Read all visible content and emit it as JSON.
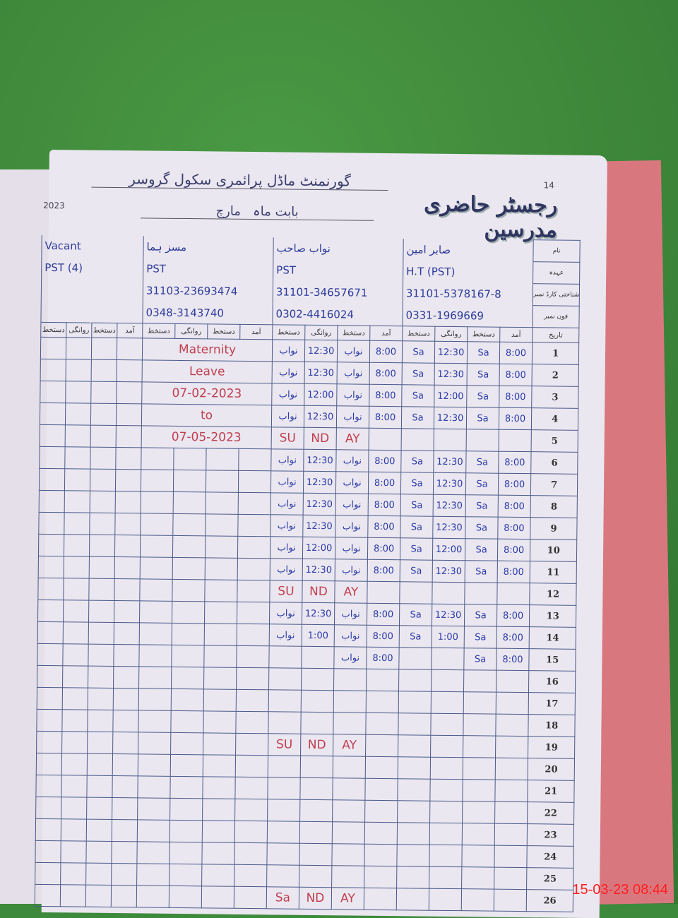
{
  "register": {
    "page_number": "14",
    "title": "رجسٹر حاضری مدرسین",
    "school_name": "گورنمنٹ ماڈل پرائمری سکول گروسر",
    "month_label": "بابت ماہ",
    "month": "مارچ",
    "year_fragment": "2023"
  },
  "row_labels": [
    "نام",
    "عہدہ",
    "شناختی کارڈ نمبر",
    "فون نمبر",
    "تاریخ"
  ],
  "column_headers": {
    "sign": "دستخط",
    "departure": "روانگی",
    "arrival": "آمد"
  },
  "teachers": [
    {
      "name": "Vacant",
      "designation": "PST (4)",
      "cnic": "",
      "phone": ""
    },
    {
      "name": "مسز ہما",
      "designation": "PST",
      "cnic": "31103-23693474",
      "phone": "0348-3143740"
    },
    {
      "name": "نواب صاحب",
      "designation": "PST",
      "cnic": "31101-34657671",
      "phone": "0302-4416024"
    },
    {
      "name": "صابر امین",
      "designation": "H.T (PST)",
      "cnic": "31101-5378167-8",
      "phone": "0331-1969669"
    }
  ],
  "maternity_note": [
    "Maternity",
    "Leave",
    "07-02-2023",
    "to",
    "07-05-2023"
  ],
  "days": [
    {
      "date": "1",
      "nawab": [
        "نواب",
        "12:30",
        "نواب",
        "8:00"
      ],
      "ht": [
        "Sa",
        "12:30",
        "Sa",
        "8:00"
      ]
    },
    {
      "date": "2",
      "nawab": [
        "نواب",
        "12:30",
        "نواب",
        "8:00"
      ],
      "ht": [
        "Sa",
        "12:30",
        "Sa",
        "8:00"
      ]
    },
    {
      "date": "3",
      "nawab": [
        "نواب",
        "12:00",
        "نواب",
        "8:00"
      ],
      "ht": [
        "Sa",
        "12:00",
        "Sa",
        "8:00"
      ]
    },
    {
      "date": "4",
      "nawab": [
        "نواب",
        "12:30",
        "نواب",
        "8:00"
      ],
      "ht": [
        "Sa",
        "12:30",
        "Sa",
        "8:00"
      ]
    },
    {
      "date": "5",
      "holiday": [
        "SU",
        "ND",
        "AY"
      ]
    },
    {
      "date": "6",
      "nawab": [
        "نواب",
        "12:30",
        "نواب",
        "8:00"
      ],
      "ht": [
        "Sa",
        "12:30",
        "Sa",
        "8:00"
      ]
    },
    {
      "date": "7",
      "nawab": [
        "نواب",
        "12:30",
        "نواب",
        "8:00"
      ],
      "ht": [
        "Sa",
        "12:30",
        "Sa",
        "8:00"
      ]
    },
    {
      "date": "8",
      "nawab": [
        "نواب",
        "12:30",
        "نواب",
        "8:00"
      ],
      "ht": [
        "Sa",
        "12:30",
        "Sa",
        "8:00"
      ]
    },
    {
      "date": "9",
      "nawab": [
        "نواب",
        "12:30",
        "نواب",
        "8:00"
      ],
      "ht": [
        "Sa",
        "12:30",
        "Sa",
        "8:00"
      ]
    },
    {
      "date": "10",
      "nawab": [
        "نواب",
        "12:00",
        "نواب",
        "8:00"
      ],
      "ht": [
        "Sa",
        "12:00",
        "Sa",
        "8:00"
      ]
    },
    {
      "date": "11",
      "nawab": [
        "نواب",
        "12:30",
        "نواب",
        "8:00"
      ],
      "ht": [
        "Sa",
        "12:30",
        "Sa",
        "8:00"
      ]
    },
    {
      "date": "12",
      "holiday": [
        "SU",
        "ND",
        "AY"
      ]
    },
    {
      "date": "13",
      "nawab": [
        "نواب",
        "12:30",
        "نواب",
        "8:00"
      ],
      "ht": [
        "Sa",
        "12:30",
        "Sa",
        "8:00"
      ]
    },
    {
      "date": "14",
      "nawab": [
        "نواب",
        "1:00",
        "نواب",
        "8:00"
      ],
      "ht": [
        "Sa",
        "1:00",
        "Sa",
        "8:00"
      ]
    },
    {
      "date": "15",
      "nawab": [
        "",
        "",
        "نواب",
        "8:00"
      ],
      "ht": [
        "",
        "",
        "Sa",
        "8:00"
      ]
    },
    {
      "date": "16"
    },
    {
      "date": "17"
    },
    {
      "date": "18"
    },
    {
      "date": "19",
      "holiday": [
        "SU",
        "ND",
        "AY"
      ]
    },
    {
      "date": "20"
    },
    {
      "date": "21"
    },
    {
      "date": "22"
    },
    {
      "date": "23"
    },
    {
      "date": "24"
    },
    {
      "date": "25"
    },
    {
      "date": "26",
      "holiday": [
        "Sa",
        "ND",
        "AY"
      ]
    }
  ],
  "camera_timestamp": "15-03-23  08:44"
}
